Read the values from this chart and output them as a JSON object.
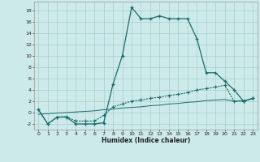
{
  "xlabel": "Humidex (Indice chaleur)",
  "x": [
    0,
    1,
    2,
    3,
    4,
    5,
    6,
    7,
    8,
    9,
    10,
    11,
    12,
    13,
    14,
    15,
    16,
    17,
    18,
    19,
    20,
    21,
    22,
    23
  ],
  "line1": [
    0.5,
    -2,
    -0.8,
    -0.8,
    -2,
    -2,
    -2,
    -1.8,
    5,
    10,
    18.5,
    16.5,
    16.5,
    17,
    16.5,
    16.5,
    16.5,
    13,
    7,
    7,
    5.5,
    4,
    2,
    2.5
  ],
  "line2": [
    0.5,
    -2,
    -0.8,
    -0.7,
    -1.5,
    -1.5,
    -1.5,
    -0.5,
    1,
    1.5,
    2,
    2.2,
    2.5,
    2.7,
    3,
    3.2,
    3.5,
    4,
    4.2,
    4.5,
    4.8,
    2,
    2,
    2.5
  ],
  "line3": [
    -0.3,
    -0.2,
    -0.1,
    0.0,
    0.1,
    0.2,
    0.3,
    0.5,
    0.6,
    0.8,
    0.9,
    1.0,
    1.2,
    1.3,
    1.5,
    1.6,
    1.8,
    1.9,
    2.1,
    2.2,
    2.3,
    2.0,
    2.1,
    2.4
  ],
  "bg_color": "#cceaea",
  "grid_color": "#aacccc",
  "line_color": "#1a6b6b",
  "ylim": [
    -3,
    19.5
  ],
  "yticks": [
    -2,
    0,
    2,
    4,
    6,
    8,
    10,
    12,
    14,
    16,
    18
  ],
  "xticks": [
    0,
    1,
    2,
    3,
    4,
    5,
    6,
    7,
    8,
    9,
    10,
    11,
    12,
    13,
    14,
    15,
    16,
    17,
    18,
    19,
    20,
    21,
    22,
    23
  ]
}
